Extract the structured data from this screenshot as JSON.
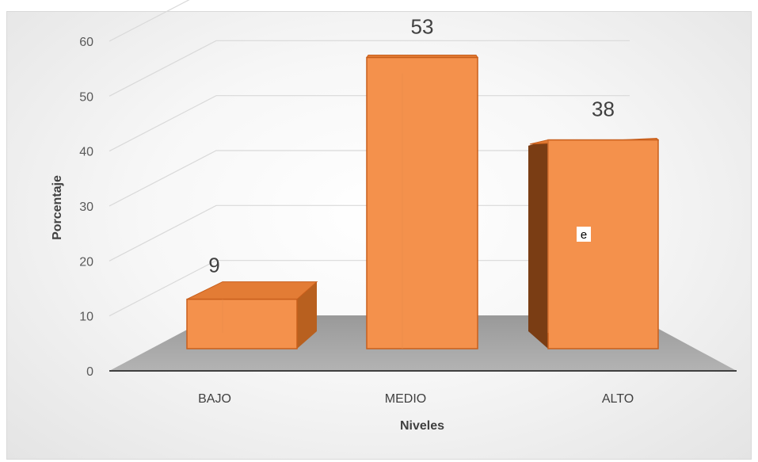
{
  "chart_data": {
    "type": "bar",
    "categories": [
      "BAJO",
      "MEDIO",
      "ALTO"
    ],
    "values": [
      9,
      53,
      38
    ],
    "xlabel": "Niveles",
    "ylabel": "Porcentaje",
    "ylim": [
      0,
      60
    ],
    "yticks": [
      0,
      10,
      20,
      30,
      40,
      50,
      60
    ],
    "grid": true,
    "legend": "none",
    "style": "3d-column",
    "bar_color": "#f4914c",
    "bar_side_color": "#7a3d14",
    "floor_color": "#a6a6a6",
    "stray_text": "e"
  }
}
